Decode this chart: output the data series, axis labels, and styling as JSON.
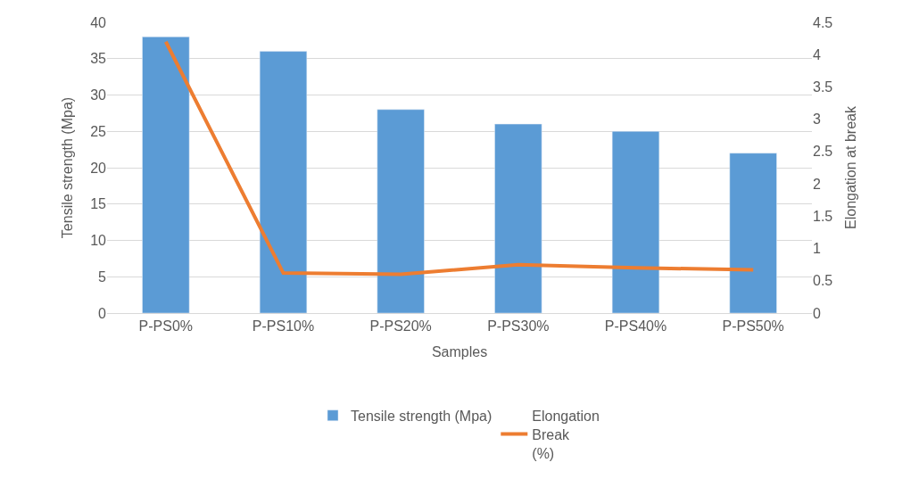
{
  "chart_data": {
    "type": "bar",
    "xlabel": "Samples",
    "ylabel": "Tensile strength (Mpa)",
    "y2label": "Elongation at break",
    "categories": [
      "P-PS0%",
      "P-PS10%",
      "P-PS20%",
      "P-PS30%",
      "P-PS40%",
      "P-PS50%"
    ],
    "series": [
      {
        "name": "Tensile strength (Mpa)",
        "color": "#5b9bd5",
        "values": [
          38,
          36,
          28,
          26,
          25,
          22
        ]
      },
      {
        "name": "Elongation\nBreak\n(%)",
        "type": "line",
        "axis": "y2",
        "color": "#ed7d31",
        "values": [
          4.2,
          0.62,
          0.6,
          0.75,
          0.7,
          0.67
        ]
      }
    ],
    "ylim": [
      0,
      40
    ],
    "yticks": [
      0,
      5,
      10,
      15,
      20,
      25,
      30,
      35,
      40
    ],
    "y2lim": [
      0,
      4.5
    ],
    "y2ticks": [
      0,
      0.5,
      1,
      1.5,
      2,
      2.5,
      3,
      3.5,
      4,
      4.5
    ],
    "grid": "y",
    "legend": "bottom",
    "marker": "none"
  }
}
